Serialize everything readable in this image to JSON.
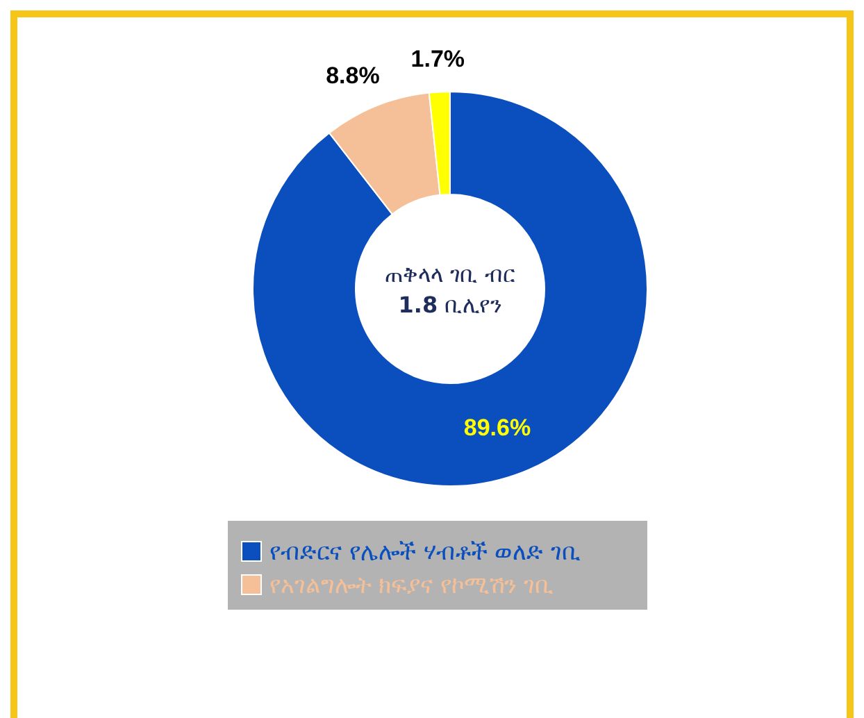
{
  "chart_data": {
    "type": "donut",
    "categories": [
      "የብድርና የሌሎች ሃብቶች ወለድ ገቢ",
      "የአገልግሎት ክፍያና የኮሚሽን ገቢ",
      null
    ],
    "values": [
      89.6,
      8.8,
      1.7
    ],
    "colors": [
      "#0a4fbd",
      "#f5bf97",
      "#ffff00"
    ],
    "annotations": [
      "ጠቅላላ ገቢ ብር",
      "**1.8** ቢሊየን"
    ],
    "value_labels": [
      "89.6%",
      "8.8%",
      "1.7%"
    ],
    "legend": "bottom"
  }
}
